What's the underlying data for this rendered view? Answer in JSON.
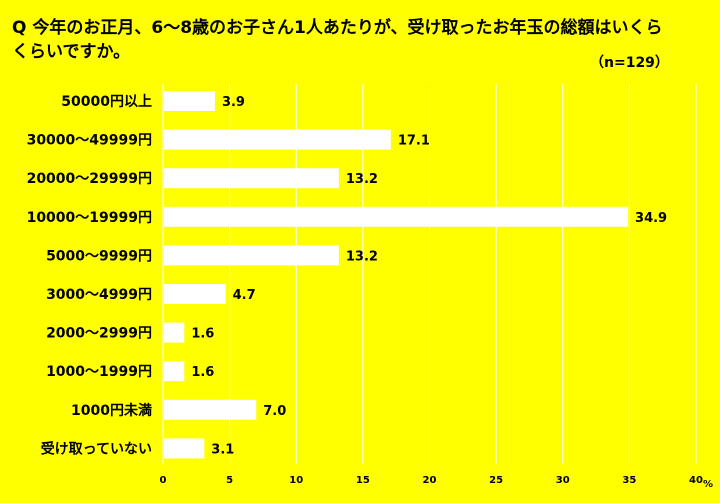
{
  "question": "Q 今年のお正月、6〜8歳のお子さん1人あたりが、受け取ったお年玉の総額はいくらくらいですか。",
  "sample_size": "（n=129）",
  "colors": {
    "background": "#FFFF00",
    "bar": "#FFFFFF",
    "grid": "#FFFFFF"
  },
  "chart_data": {
    "type": "bar",
    "orientation": "horizontal",
    "title": "Q 今年のお正月、6〜8歳のお子さん1人あたりが、受け取ったお年玉の総額はいくらくらいですか。",
    "categories": [
      "50000円以上",
      "30000〜49999円",
      "20000〜29999円",
      "10000〜19999円",
      "5000〜9999円",
      "3000〜4999円",
      "2000〜2999円",
      "1000〜1999円",
      "1000円未満",
      "受け取っていない"
    ],
    "values": [
      3.9,
      17.1,
      13.2,
      34.9,
      13.2,
      4.7,
      1.6,
      1.6,
      7.0,
      3.1
    ],
    "value_labels": [
      "3.9",
      "17.1",
      "13.2",
      "34.9",
      "13.2",
      "4.7",
      "1.6",
      "1.6",
      "7.0",
      "3.1"
    ],
    "xlim": [
      0,
      40
    ],
    "xticks": [
      0,
      5,
      10,
      15,
      20,
      25,
      30,
      35,
      40
    ],
    "xunit": "%",
    "grid": "vertical"
  }
}
